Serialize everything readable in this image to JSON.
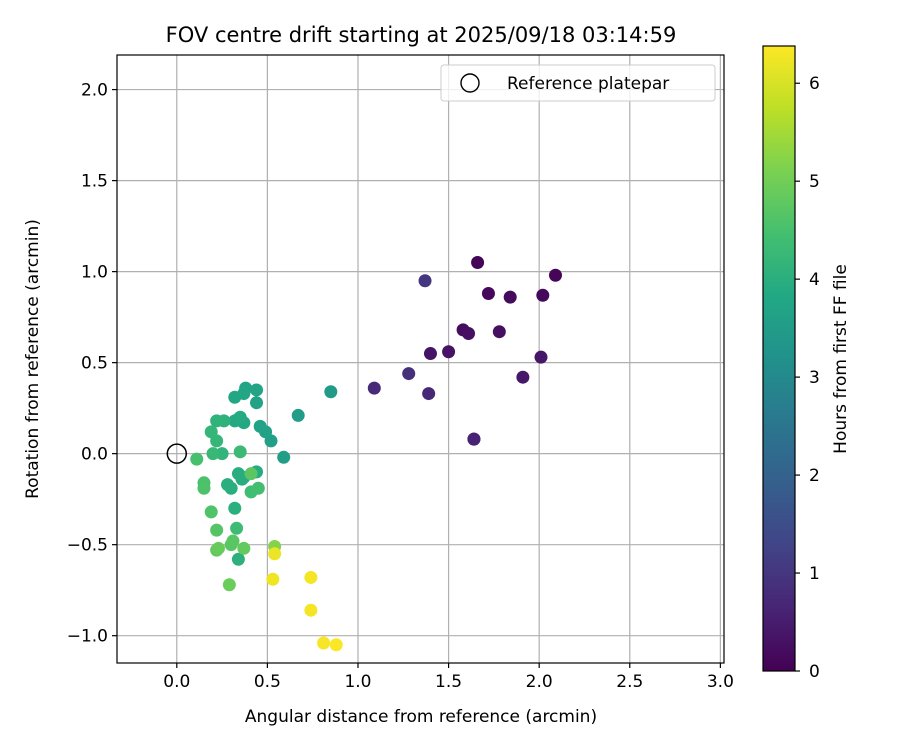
{
  "chart_data": {
    "type": "scatter",
    "title": "FOV centre drift starting at 2025/09/18 03:14:59",
    "xlabel": "Angular distance from reference (arcmin)",
    "ylabel": "Rotation from reference (arcmin)",
    "xlim": [
      -0.33,
      3.02
    ],
    "ylim": [
      -1.15,
      2.19
    ],
    "xticks": [
      0.0,
      0.5,
      1.0,
      1.5,
      2.0,
      2.5,
      3.0
    ],
    "xtick_labels": [
      "0.0",
      "0.5",
      "1.0",
      "1.5",
      "2.0",
      "2.5",
      "3.0"
    ],
    "yticks": [
      -1.0,
      -0.5,
      0.0,
      0.5,
      1.0,
      1.5,
      2.0
    ],
    "ytick_labels": [
      "−1.0",
      "−0.5",
      "0.0",
      "0.5",
      "1.0",
      "1.5",
      "2.0"
    ],
    "grid": true,
    "legend": {
      "position": "upper-right",
      "entries": [
        {
          "label": "Reference platepar",
          "marker": "open-circle",
          "x": 0.0,
          "y": 0.0
        }
      ]
    },
    "colorbar": {
      "label": "Hours from first FF file",
      "colormap": "viridis",
      "range": [
        0,
        6.38
      ],
      "ticks": [
        0,
        1,
        2,
        3,
        4,
        5,
        6
      ],
      "tick_labels": [
        "0",
        "1",
        "2",
        "3",
        "4",
        "5",
        "6"
      ]
    },
    "series": [
      {
        "name": "FOV centre",
        "points": [
          {
            "x": 1.66,
            "y": 1.05,
            "c": 0.05
          },
          {
            "x": 2.09,
            "y": 0.98,
            "c": 0.08
          },
          {
            "x": 1.72,
            "y": 0.88,
            "c": 0.12
          },
          {
            "x": 2.02,
            "y": 0.87,
            "c": 0.15
          },
          {
            "x": 1.84,
            "y": 0.86,
            "c": 0.18
          },
          {
            "x": 1.58,
            "y": 0.68,
            "c": 0.22
          },
          {
            "x": 1.61,
            "y": 0.66,
            "c": 0.25
          },
          {
            "x": 1.78,
            "y": 0.67,
            "c": 0.28
          },
          {
            "x": 1.5,
            "y": 0.56,
            "c": 0.32
          },
          {
            "x": 1.4,
            "y": 0.55,
            "c": 0.35
          },
          {
            "x": 2.01,
            "y": 0.53,
            "c": 0.38
          },
          {
            "x": 1.91,
            "y": 0.42,
            "c": 0.42
          },
          {
            "x": 1.64,
            "y": 0.08,
            "c": 0.55
          },
          {
            "x": 1.64,
            "y": 0.08,
            "c": 0.6
          },
          {
            "x": 1.39,
            "y": 0.33,
            "c": 0.7
          },
          {
            "x": 1.09,
            "y": 0.36,
            "c": 0.75
          },
          {
            "x": 1.28,
            "y": 0.44,
            "c": 0.85
          },
          {
            "x": 1.37,
            "y": 0.95,
            "c": 1.0
          },
          {
            "x": 0.85,
            "y": 0.34,
            "c": 3.45
          },
          {
            "x": 0.67,
            "y": 0.21,
            "c": 3.5
          },
          {
            "x": 0.59,
            "y": -0.02,
            "c": 3.55
          },
          {
            "x": 0.52,
            "y": 0.07,
            "c": 3.6
          },
          {
            "x": 0.49,
            "y": 0.12,
            "c": 3.62
          },
          {
            "x": 0.46,
            "y": 0.15,
            "c": 3.65
          },
          {
            "x": 0.44,
            "y": 0.28,
            "c": 3.7
          },
          {
            "x": 0.44,
            "y": 0.35,
            "c": 3.72
          },
          {
            "x": 0.38,
            "y": 0.36,
            "c": 3.75
          },
          {
            "x": 0.37,
            "y": 0.33,
            "c": 3.78
          },
          {
            "x": 0.32,
            "y": 0.31,
            "c": 3.8
          },
          {
            "x": 0.34,
            "y": 0.19,
            "c": 3.82
          },
          {
            "x": 0.37,
            "y": 0.17,
            "c": 3.84
          },
          {
            "x": 0.32,
            "y": 0.18,
            "c": 3.86
          },
          {
            "x": 0.35,
            "y": 0.2,
            "c": 3.88
          },
          {
            "x": 0.44,
            "y": -0.1,
            "c": 3.9
          },
          {
            "x": 0.36,
            "y": -0.14,
            "c": 3.92
          },
          {
            "x": 0.34,
            "y": -0.11,
            "c": 3.94
          },
          {
            "x": 0.37,
            "y": -0.13,
            "c": 3.96
          },
          {
            "x": 0.3,
            "y": -0.19,
            "c": 3.98
          },
          {
            "x": 0.28,
            "y": -0.17,
            "c": 4.0
          },
          {
            "x": 0.32,
            "y": -0.3,
            "c": 4.02
          },
          {
            "x": 0.34,
            "y": -0.58,
            "c": 4.05
          },
          {
            "x": 0.26,
            "y": 0.18,
            "c": 4.08
          },
          {
            "x": 0.22,
            "y": 0.18,
            "c": 4.1
          },
          {
            "x": 0.25,
            "y": 0.0,
            "c": 4.15
          },
          {
            "x": 0.19,
            "y": 0.12,
            "c": 4.18
          },
          {
            "x": 0.22,
            "y": 0.07,
            "c": 4.2
          },
          {
            "x": 0.2,
            "y": 0.0,
            "c": 4.25
          },
          {
            "x": 0.35,
            "y": 0.01,
            "c": 4.3
          },
          {
            "x": 0.33,
            "y": -0.41,
            "c": 4.35
          },
          {
            "x": 0.41,
            "y": -0.21,
            "c": 4.4
          },
          {
            "x": 0.45,
            "y": -0.19,
            "c": 4.45
          },
          {
            "x": 0.11,
            "y": -0.03,
            "c": 4.5
          },
          {
            "x": 0.15,
            "y": -0.16,
            "c": 4.55
          },
          {
            "x": 0.15,
            "y": -0.19,
            "c": 4.58
          },
          {
            "x": 0.19,
            "y": -0.32,
            "c": 4.6
          },
          {
            "x": 0.22,
            "y": -0.42,
            "c": 4.65
          },
          {
            "x": 0.3,
            "y": -0.5,
            "c": 4.7
          },
          {
            "x": 0.31,
            "y": -0.48,
            "c": 4.72
          },
          {
            "x": 0.41,
            "y": -0.11,
            "c": 4.75
          },
          {
            "x": 0.22,
            "y": -0.53,
            "c": 4.8
          },
          {
            "x": 0.37,
            "y": -0.52,
            "c": 4.85
          },
          {
            "x": 0.23,
            "y": -0.52,
            "c": 4.88
          },
          {
            "x": 0.29,
            "y": -0.72,
            "c": 4.92
          },
          {
            "x": 0.54,
            "y": -0.51,
            "c": 5.2
          },
          {
            "x": 0.54,
            "y": -0.55,
            "c": 6.2
          },
          {
            "x": 0.53,
            "y": -0.69,
            "c": 6.25
          },
          {
            "x": 0.74,
            "y": -0.68,
            "c": 6.28
          },
          {
            "x": 0.74,
            "y": -0.86,
            "c": 6.3
          },
          {
            "x": 0.81,
            "y": -1.04,
            "c": 6.32
          },
          {
            "x": 0.88,
            "y": -1.05,
            "c": 6.35
          }
        ]
      }
    ]
  }
}
